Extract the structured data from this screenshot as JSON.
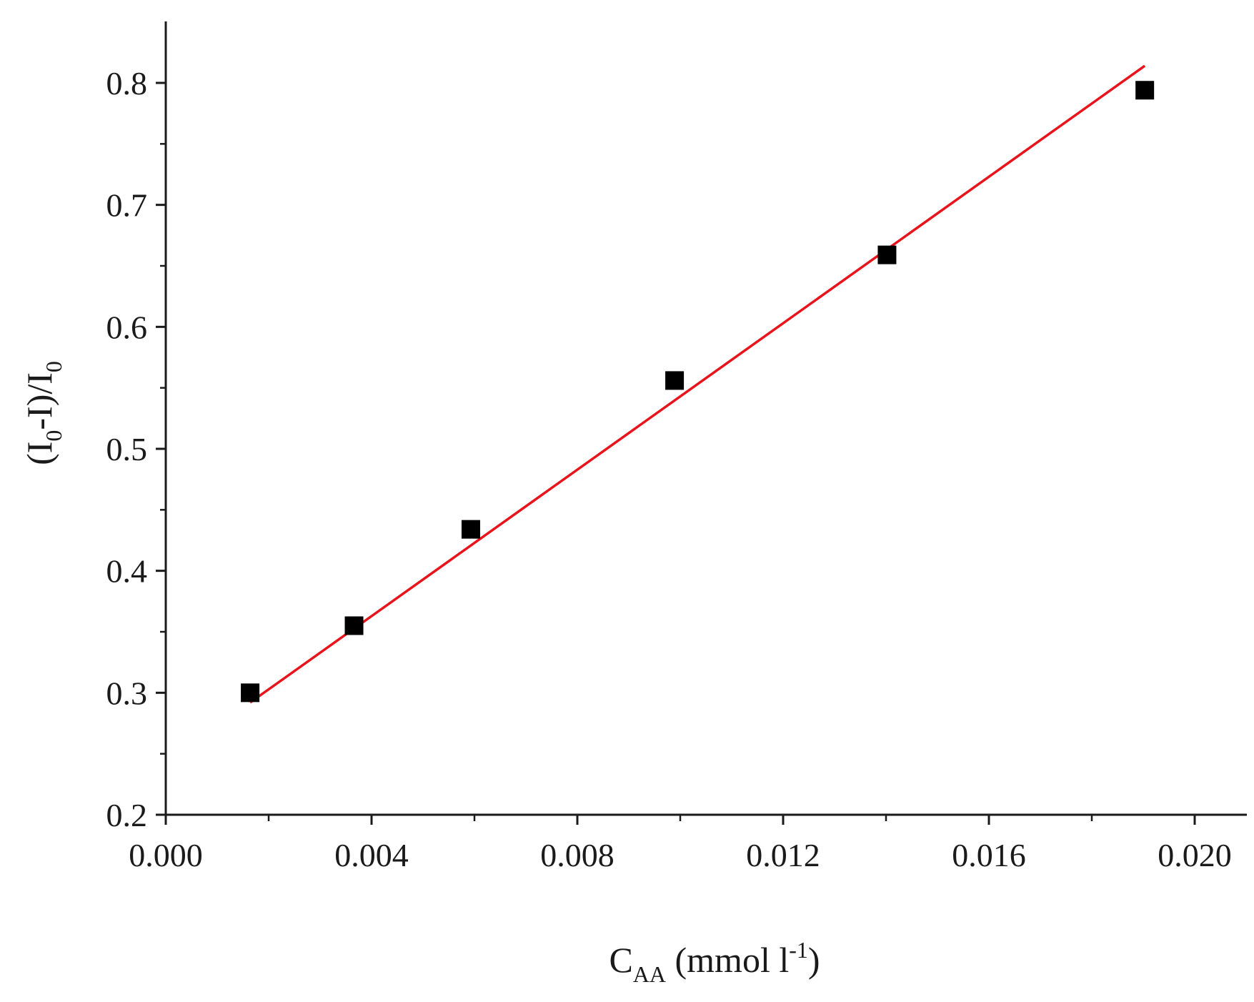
{
  "chart_data": {
    "type": "scatter",
    "title": "",
    "xlabel": {
      "main": "C",
      "sub": "AA",
      "rest_before": " (mmol l",
      "sup": "-1",
      "rest_after": ")"
    },
    "ylabel": {
      "p1": "(I",
      "s1": "0",
      "p2": "-I)/I",
      "s2": "0"
    },
    "xlim": [
      0.0,
      0.021
    ],
    "ylim": [
      0.2,
      0.86
    ],
    "x_ticks": [
      {
        "value": 0.0,
        "label": "0.000"
      },
      {
        "value": 0.004,
        "label": "0.004"
      },
      {
        "value": 0.008,
        "label": "0.008"
      },
      {
        "value": 0.012,
        "label": "0.012"
      },
      {
        "value": 0.016,
        "label": "0.016"
      },
      {
        "value": 0.02,
        "label": "0.020"
      }
    ],
    "x_minor_ticks": [
      0.002,
      0.006,
      0.01,
      0.014,
      0.018
    ],
    "y_ticks": [
      {
        "value": 0.2,
        "label": "0.2"
      },
      {
        "value": 0.3,
        "label": "0.3"
      },
      {
        "value": 0.4,
        "label": "0.4"
      },
      {
        "value": 0.5,
        "label": "0.5"
      },
      {
        "value": 0.6,
        "label": "0.6"
      },
      {
        "value": 0.7,
        "label": "0.7"
      },
      {
        "value": 0.8,
        "label": "0.8"
      }
    ],
    "y_minor_ticks": [
      0.25,
      0.35,
      0.45,
      0.55,
      0.65,
      0.75
    ],
    "series": [
      {
        "type": "scatter",
        "color": "#000000",
        "points": [
          {
            "x": 0.00164,
            "y": 0.3
          },
          {
            "x": 0.00366,
            "y": 0.355
          },
          {
            "x": 0.00593,
            "y": 0.434
          },
          {
            "x": 0.00989,
            "y": 0.556
          },
          {
            "x": 0.01402,
            "y": 0.659
          },
          {
            "x": 0.01903,
            "y": 0.794
          }
        ]
      },
      {
        "type": "line",
        "color": "#e8141c",
        "points": [
          {
            "x": 0.00164,
            "y": 0.292
          },
          {
            "x": 0.01903,
            "y": 0.814
          }
        ]
      }
    ],
    "grid": false,
    "legend": "none"
  }
}
